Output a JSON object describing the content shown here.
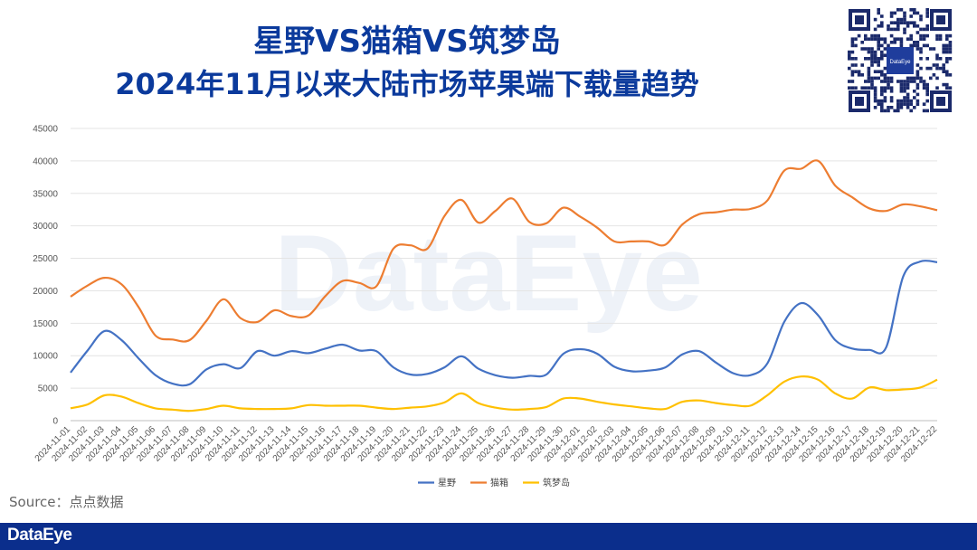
{
  "header": {
    "title_line1": "星野VS猫箱VS筑梦岛",
    "title_line2": "2024年11月以来大陆市场苹果端下载量趋势",
    "qr_label": "DataEye"
  },
  "source": "Source：点点数据",
  "footer": {
    "brand": "DataEye"
  },
  "watermark": "DataEye",
  "colors": {
    "title": "#0b3a9c",
    "footer": "#0b2e8c",
    "grid": "#e4e4e4",
    "xingye": "#4472c4",
    "maoxiang": "#ed7d31",
    "zhumengdao": "#ffc000"
  },
  "chart_data": {
    "type": "line",
    "title": "",
    "xlabel": "",
    "ylabel": "",
    "ylim": [
      0,
      45000
    ],
    "yticks": [
      0,
      5000,
      10000,
      15000,
      20000,
      25000,
      30000,
      35000,
      40000,
      45000
    ],
    "grid": true,
    "legend_position": "bottom",
    "x": [
      "2024-11-01",
      "2024-11-02",
      "2024-11-03",
      "2024-11-04",
      "2024-11-05",
      "2024-11-06",
      "2024-11-07",
      "2024-11-08",
      "2024-11-09",
      "2024-11-10",
      "2024-11-11",
      "2024-11-12",
      "2024-11-13",
      "2024-11-14",
      "2024-11-15",
      "2024-11-16",
      "2024-11-17",
      "2024-11-18",
      "2024-11-19",
      "2024-11-20",
      "2024-11-21",
      "2024-11-22",
      "2024-11-23",
      "2024-11-24",
      "2024-11-25",
      "2024-11-26",
      "2024-11-27",
      "2024-11-28",
      "2024-11-29",
      "2024-11-30",
      "2024-12-01",
      "2024-12-02",
      "2024-12-03",
      "2024-12-04",
      "2024-12-05",
      "2024-12-06",
      "2024-12-07",
      "2024-12-08",
      "2024-12-09",
      "2024-12-10",
      "2024-12-11",
      "2024-12-12",
      "2024-12-13",
      "2024-12-14",
      "2024-12-15",
      "2024-12-16",
      "2024-12-17",
      "2024-12-18",
      "2024-12-19",
      "2024-12-20",
      "2024-12-21",
      "2024-12-22"
    ],
    "series": [
      {
        "name": "星野",
        "color": "#4472c4",
        "values": [
          7400,
          10800,
          13800,
          12400,
          9600,
          7000,
          5700,
          5600,
          7900,
          8700,
          8100,
          10700,
          10000,
          10700,
          10400,
          11100,
          11700,
          10800,
          10700,
          8200,
          7100,
          7200,
          8200,
          9900,
          8000,
          7000,
          6600,
          6900,
          7100,
          10300,
          11000,
          10300,
          8300,
          7600,
          7700,
          8200,
          10200,
          10700,
          8900,
          7300,
          7000,
          8800,
          15200,
          18100,
          16200,
          12400,
          11100,
          10900,
          11300,
          22200,
          24500,
          24400
        ]
      },
      {
        "name": "猫箱",
        "color": "#ed7d31",
        "values": [
          19100,
          20800,
          22000,
          21000,
          17500,
          13100,
          12500,
          12400,
          15400,
          18700,
          15800,
          15200,
          17000,
          16100,
          16200,
          19200,
          21500,
          21200,
          20700,
          26500,
          27000,
          26500,
          31500,
          34000,
          30500,
          32300,
          34200,
          30600,
          30400,
          32800,
          31400,
          29700,
          27600,
          27600,
          27600,
          27100,
          30200,
          31800,
          32100,
          32500,
          32600,
          33900,
          38500,
          38800,
          40000,
          36200,
          34400,
          32700,
          32300,
          33300,
          33000,
          32400
        ]
      },
      {
        "name": "筑梦岛",
        "color": "#ffc000",
        "values": [
          1900,
          2500,
          3900,
          3700,
          2700,
          1900,
          1700,
          1500,
          1800,
          2300,
          1900,
          1800,
          1800,
          1900,
          2400,
          2300,
          2300,
          2300,
          2000,
          1800,
          2000,
          2200,
          2800,
          4200,
          2700,
          2000,
          1700,
          1800,
          2100,
          3400,
          3400,
          2900,
          2500,
          2200,
          1900,
          1800,
          2900,
          3100,
          2700,
          2400,
          2300,
          3900,
          6000,
          6800,
          6300,
          4200,
          3400,
          5100,
          4700,
          4800,
          5100,
          6300
        ]
      }
    ]
  }
}
